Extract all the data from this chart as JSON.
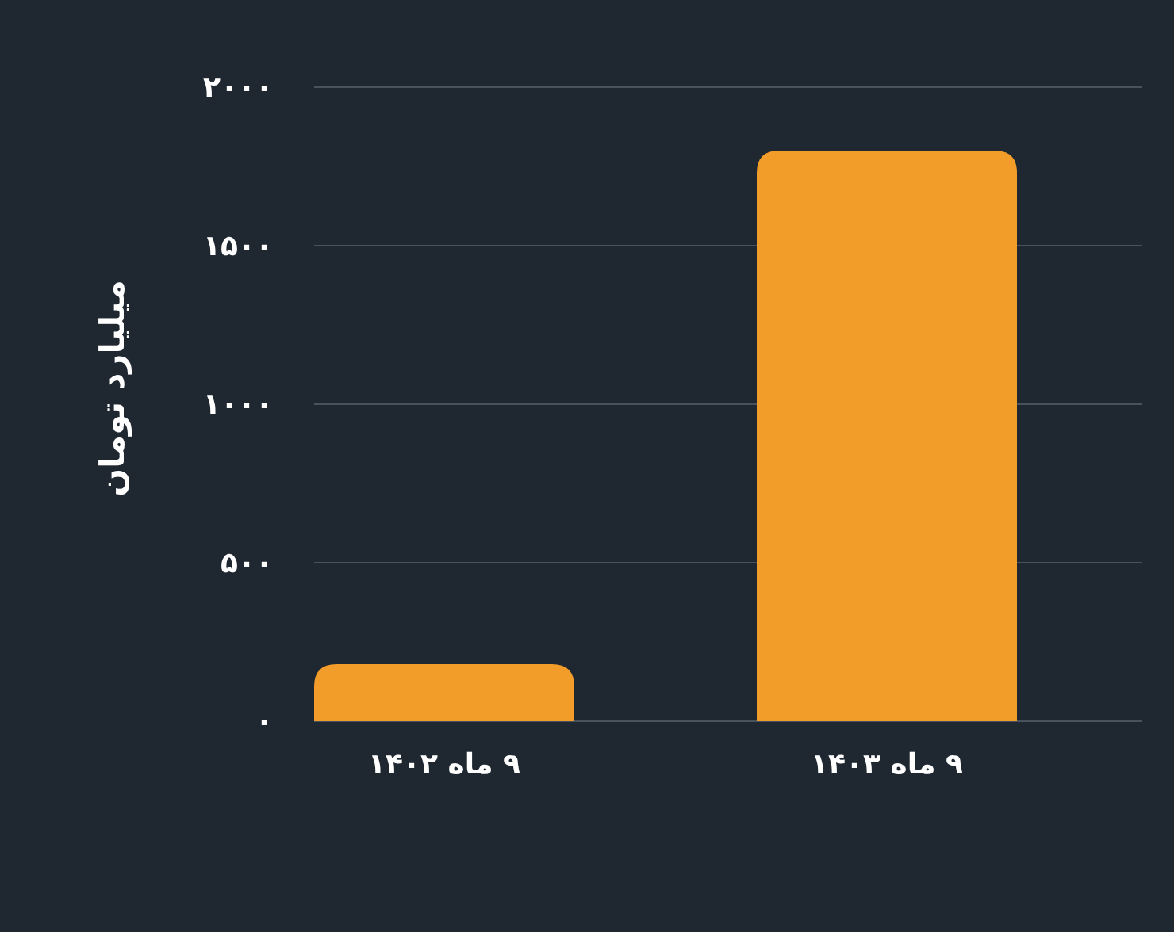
{
  "chart_data": {
    "type": "bar",
    "ylabel": "میلیارد تومان",
    "categories": [
      "۹ ماه ۱۴۰۲",
      "۹ ماه ۱۴۰۳"
    ],
    "values": [
      180,
      1800
    ],
    "color": "#f29d2a",
    "ylim": [
      0,
      2000
    ],
    "yticks": [
      {
        "value": 0,
        "label": "۰"
      },
      {
        "value": 500,
        "label": "۵۰۰"
      },
      {
        "value": 1000,
        "label": "۱۰۰۰"
      },
      {
        "value": 1500,
        "label": "۱۵۰۰"
      },
      {
        "value": 2000,
        "label": "۲۰۰۰"
      }
    ],
    "grid": "y"
  }
}
